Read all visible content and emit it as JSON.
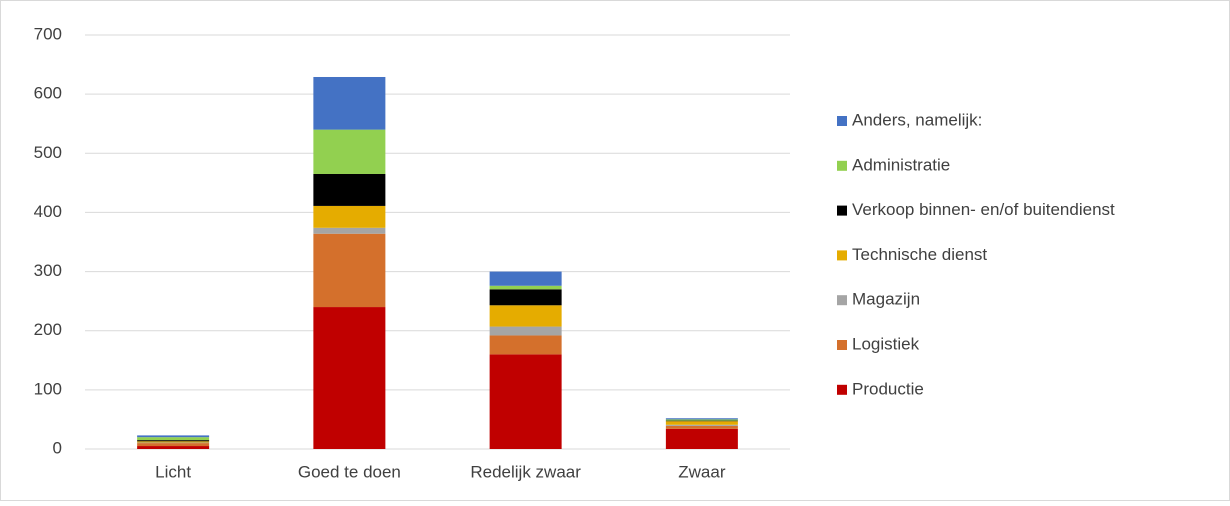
{
  "chart_data": {
    "type": "stacked_bar",
    "categories": [
      "Licht",
      "Goed te doen",
      "Redelijk zwaar",
      "Zwaar"
    ],
    "series": [
      {
        "name": "Productie",
        "color": "#c00000",
        "values": [
          5,
          240,
          160,
          34
        ]
      },
      {
        "name": "Logistiek",
        "color": "#d4702c",
        "values": [
          5,
          124,
          32,
          5
        ]
      },
      {
        "name": "Magazijn",
        "color": "#a5a5a5",
        "values": [
          1,
          10,
          15,
          2
        ]
      },
      {
        "name": "Technische dienst",
        "color": "#e5ac00",
        "values": [
          2,
          37,
          36,
          6
        ]
      },
      {
        "name": "Verkoop binnen- en/of buitendienst",
        "color": "#000000",
        "values": [
          2,
          54,
          27,
          1
        ]
      },
      {
        "name": "Administratie",
        "color": "#92d050",
        "values": [
          5,
          75,
          6,
          2
        ]
      },
      {
        "name": "Anders, namelijk:",
        "color": "#4472c4",
        "values": [
          3,
          89,
          24,
          2
        ]
      }
    ],
    "ylim": [
      0,
      700
    ],
    "yticks": [
      0,
      100,
      200,
      300,
      400,
      500,
      600,
      700
    ],
    "grid": true,
    "legend": "right"
  }
}
